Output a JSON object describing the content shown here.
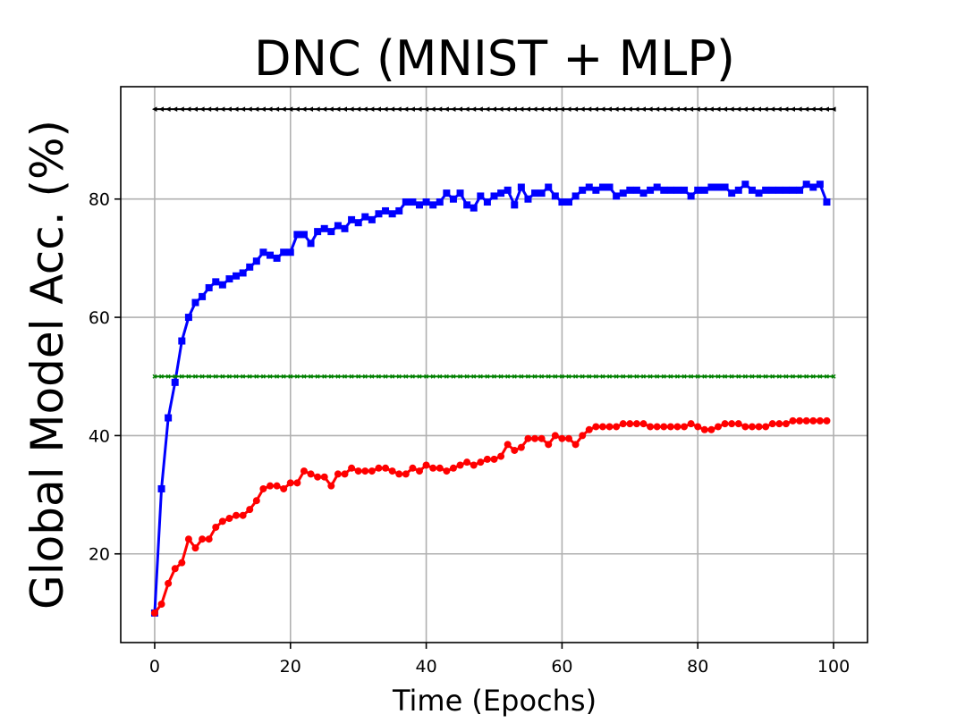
{
  "chart_data": {
    "type": "line",
    "title": "DNC (MNIST + MLP)",
    "xlabel": "Time (Epochs)",
    "ylabel": "Global Model Acc. (%)",
    "xlim": [
      -5,
      105
    ],
    "ylim": [
      5,
      99
    ],
    "xticks": [
      0,
      20,
      40,
      60,
      80,
      100
    ],
    "yticks": [
      20,
      40,
      60,
      80
    ],
    "grid": true,
    "legend": "none",
    "series": [
      {
        "color": "#0000ff",
        "marker": "square",
        "values": [
          10,
          31,
          43,
          49,
          56,
          60,
          62.5,
          63.5,
          65,
          66,
          65.5,
          66.5,
          67,
          67.5,
          68.5,
          69.5,
          71,
          70.5,
          70,
          71,
          71,
          74,
          74,
          72.5,
          74.5,
          75,
          74.5,
          75.5,
          75,
          76.5,
          76,
          77,
          76.5,
          77.5,
          78,
          77.5,
          78,
          79.5,
          79.5,
          79,
          79.5,
          79,
          79.5,
          81,
          80,
          81,
          79,
          78.5,
          80.5,
          79.5,
          80.5,
          81,
          81.5,
          79,
          82,
          80,
          81,
          81,
          82,
          80.5,
          79.5,
          79.5,
          80.5,
          81.5,
          82,
          81.5,
          82,
          82,
          80.5,
          81,
          81.5,
          81.5,
          81,
          81.5,
          82,
          81.5,
          81.5,
          81.5,
          81.5,
          80.5,
          81.5,
          81.5,
          82,
          82,
          82,
          81,
          81.5,
          82.5,
          81.5,
          81,
          81.5,
          81.5,
          81.5,
          81.5,
          81.5,
          81.5,
          82.5,
          82,
          82.5,
          79.5
        ]
      },
      {
        "color": "#ff0000",
        "marker": "circle",
        "values": [
          10,
          11.5,
          15,
          17.5,
          18.5,
          22.5,
          21,
          22.5,
          22.5,
          24.5,
          25.5,
          26,
          26.5,
          26.5,
          27.5,
          29,
          31,
          31.5,
          31.5,
          31,
          32,
          32,
          34,
          33.5,
          33,
          33,
          31.5,
          33.5,
          33.5,
          34.5,
          34,
          34,
          34,
          34.5,
          34.5,
          34,
          33.5,
          33.5,
          34.5,
          34,
          35,
          34.5,
          34.5,
          34,
          34.5,
          35,
          35.5,
          35,
          35.5,
          36,
          36,
          36.5,
          38.5,
          37.5,
          38,
          39.5,
          39.5,
          39.5,
          38.5,
          40,
          39.5,
          39.5,
          38.5,
          40,
          41,
          41.5,
          41.5,
          41.5,
          41.5,
          42,
          42,
          42,
          42,
          41.5,
          41.5,
          41.5,
          41.5,
          41.5,
          41.5,
          42,
          41.5,
          41,
          41,
          41.5,
          42,
          42,
          42,
          41.5,
          41.5,
          41.5,
          41.5,
          42,
          42,
          42,
          42.5,
          42.5,
          42.5,
          42.5,
          42.5,
          42.5
        ]
      },
      {
        "color": "#008000",
        "marker": "x",
        "constant": 50
      },
      {
        "color": "#000000",
        "marker": "triangle-left",
        "constant": 95.2
      }
    ]
  }
}
